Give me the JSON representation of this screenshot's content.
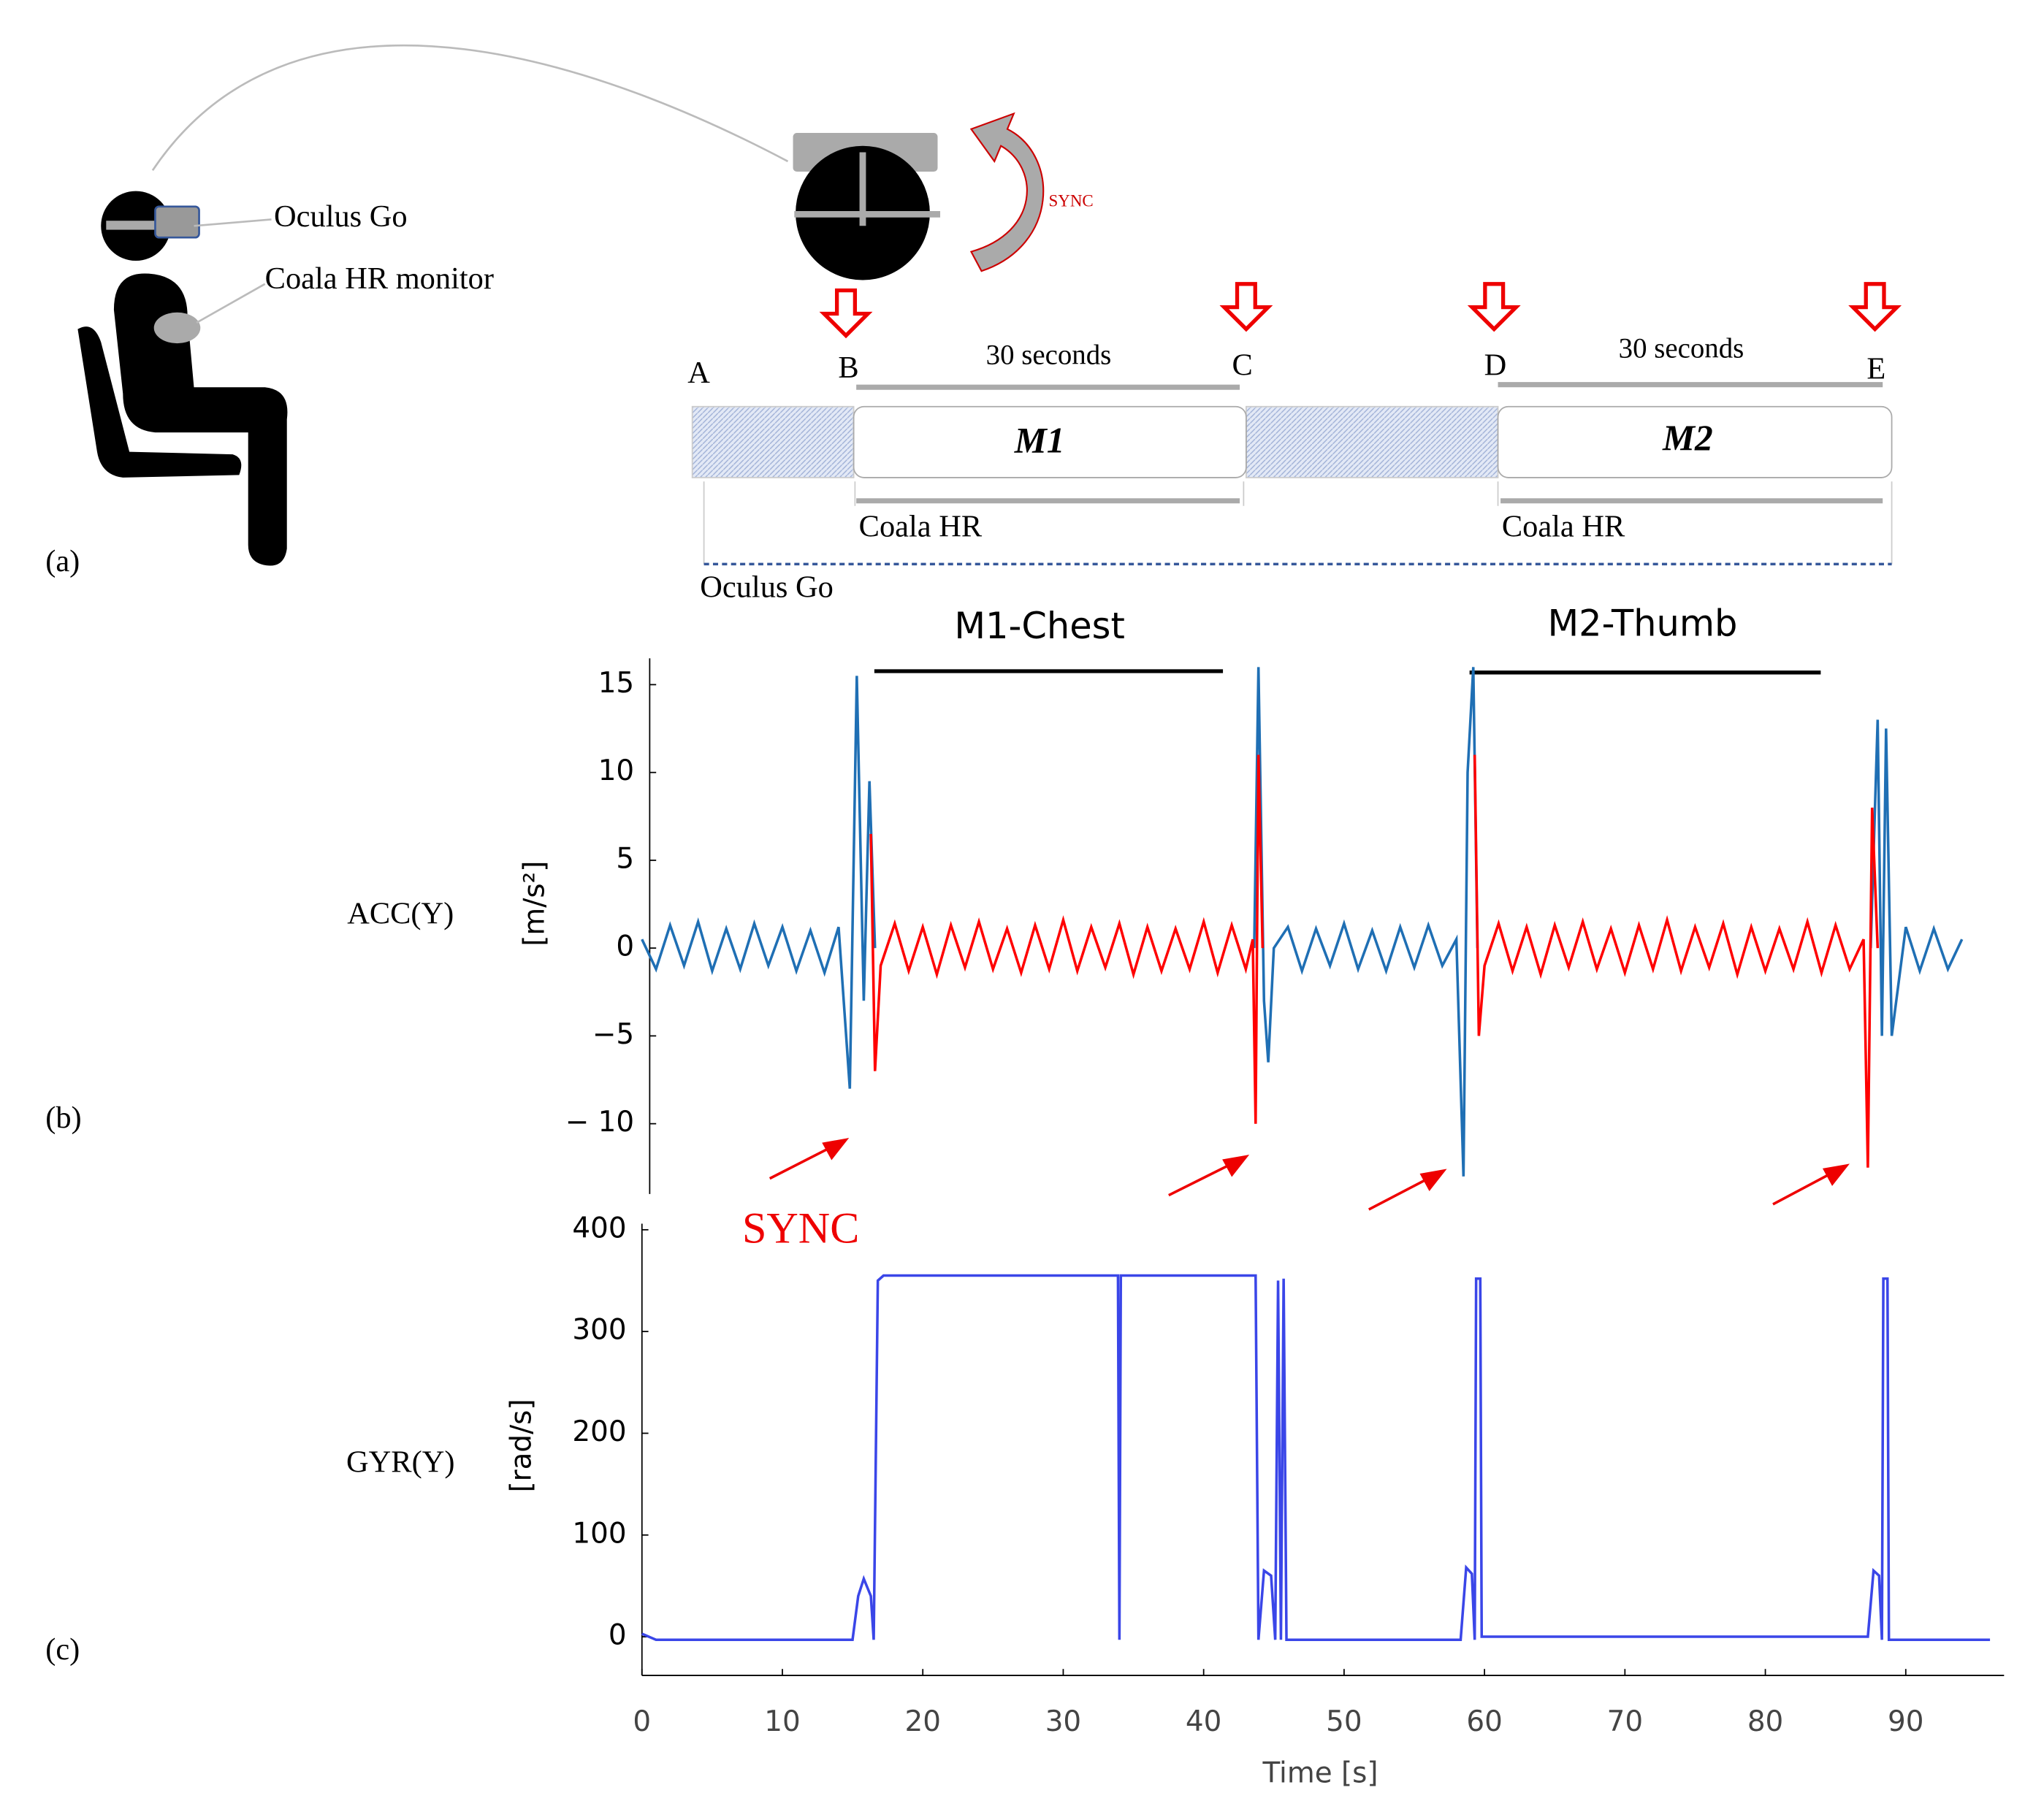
{
  "panel_labels": [
    "(a)",
    "(b)",
    "(c)"
  ],
  "diagram": {
    "device_labels": [
      "Oculus Go",
      "Coala HR monitor"
    ],
    "sync": "SYNC",
    "markers": [
      "A",
      "B",
      "C",
      "D",
      "E"
    ],
    "intervals": [
      {
        "duration": "30 seconds",
        "name": "M1",
        "recorder": "Coala HR"
      },
      {
        "duration": "30 seconds",
        "name": "M2",
        "recorder": "Coala HR"
      }
    ],
    "baseline": "Oculus Go"
  },
  "chart_data": [
    {
      "type": "line",
      "channel": "ACC(Y)",
      "ylabel": "[m/s²]",
      "annotations": [
        "M1-Chest",
        "M2-Thumb"
      ],
      "sync_label": "SYNC",
      "xlim": [
        0,
        97
      ],
      "ylim": [
        -14,
        16.5
      ],
      "yticks": [
        15,
        10,
        5,
        0,
        {
          "value": -5,
          "label": "−5"
        },
        {
          "value": -10,
          "label": "− 10"
        }
      ],
      "series": [
        {
          "color": "#1f6fb4",
          "x": [
            0,
            1,
            2,
            3,
            4,
            5,
            6,
            7,
            8,
            9,
            10,
            11,
            12,
            13,
            14,
            14.8,
            15.3,
            15.8,
            16.2,
            16.6,
            30,
            43.6,
            43.9,
            44.3,
            44.6,
            45,
            46,
            47,
            48,
            49,
            50,
            51,
            52,
            53,
            54,
            55,
            56,
            57,
            58,
            58.5,
            58.8,
            59.2,
            59.5,
            73,
            87.5,
            88,
            88.3,
            88.6,
            89,
            90,
            91,
            92,
            93,
            94
          ],
          "values": [
            0.5,
            -1.2,
            1.3,
            -1,
            1.5,
            -1.3,
            1.1,
            -1.2,
            1.4,
            -1,
            1.2,
            -1.3,
            1,
            -1.4,
            1.2,
            -8,
            15.5,
            -3,
            9.5,
            0,
            null,
            0,
            16,
            -3,
            -6.5,
            0,
            1.2,
            -1.3,
            1.1,
            -1,
            1.4,
            -1.2,
            1,
            -1.3,
            1.2,
            -1.1,
            1.3,
            -1,
            0.5,
            -13,
            10,
            16,
            0,
            null,
            0,
            13,
            -5,
            12.5,
            -5,
            1.2,
            -1.3,
            1.1,
            -1.2,
            0.5
          ]
        },
        {
          "color": "#ff0000",
          "x": [
            16.3,
            16.6,
            17,
            18,
            19,
            20,
            21,
            22,
            23,
            24,
            25,
            26,
            27,
            28,
            29,
            30,
            31,
            32,
            33,
            34,
            35,
            36,
            37,
            38,
            39,
            40,
            41,
            42,
            43,
            43.5,
            43.7,
            43.9,
            44.2,
            52,
            59.3,
            59.6,
            60,
            61,
            62,
            63,
            64,
            65,
            66,
            67,
            68,
            69,
            70,
            71,
            72,
            73,
            74,
            75,
            76,
            77,
            78,
            79,
            80,
            81,
            82,
            83,
            84,
            85,
            86,
            87,
            87.3,
            87.6,
            88
          ],
          "values": [
            6.5,
            -7,
            -1,
            1.4,
            -1.3,
            1.2,
            -1.5,
            1.3,
            -1.1,
            1.5,
            -1.2,
            1.1,
            -1.4,
            1.3,
            -1.2,
            1.6,
            -1.3,
            1.2,
            -1.1,
            1.4,
            -1.5,
            1.2,
            -1.3,
            1.1,
            -1.2,
            1.5,
            -1.4,
            1.3,
            -1.2,
            0.5,
            -10,
            11,
            0,
            null,
            11,
            -5,
            -1,
            1.4,
            -1.3,
            1.2,
            -1.5,
            1.3,
            -1.1,
            1.5,
            -1.2,
            1.1,
            -1.4,
            1.3,
            -1.2,
            1.6,
            -1.3,
            1.2,
            -1.1,
            1.4,
            -1.5,
            1.2,
            -1.3,
            1.1,
            -1.2,
            1.5,
            -1.4,
            1.3,
            -1.2,
            0.5,
            -12.5,
            8,
            0
          ]
        }
      ]
    },
    {
      "type": "line",
      "channel": "GYR(Y)",
      "ylabel": "[rad/s]",
      "xlabel": "Time [s]",
      "xlim": [
        0,
        97
      ],
      "ylim": [
        -38,
        406
      ],
      "xticks": [
        0,
        10,
        20,
        30,
        40,
        50,
        60,
        70,
        80,
        90
      ],
      "yticks": [
        0,
        100,
        200,
        300,
        400
      ],
      "series": [
        {
          "color": "#3a46e8",
          "x": [
            0,
            1,
            15,
            15.4,
            15.8,
            16.3,
            16.5,
            16.8,
            17.2,
            33.9,
            34,
            34.1,
            43.7,
            43.9,
            44.3,
            44.8,
            45.1,
            45.3,
            45.5,
            45.7,
            45.9,
            58.3,
            58.7,
            59.1,
            59.3,
            59.4,
            59.7,
            59.8,
            87.3,
            87.7,
            88.1,
            88.3,
            88.4,
            88.7,
            88.8,
            96
          ],
          "values": [
            3,
            -3,
            -3,
            40,
            57,
            40,
            -3,
            350,
            355,
            355,
            -3,
            355,
            355,
            -3,
            65,
            60,
            -3,
            350,
            -3,
            352,
            -3,
            -3,
            68,
            62,
            -3,
            352,
            352,
            0,
            0,
            65,
            60,
            -3,
            352,
            352,
            -3,
            -3
          ]
        }
      ]
    }
  ]
}
